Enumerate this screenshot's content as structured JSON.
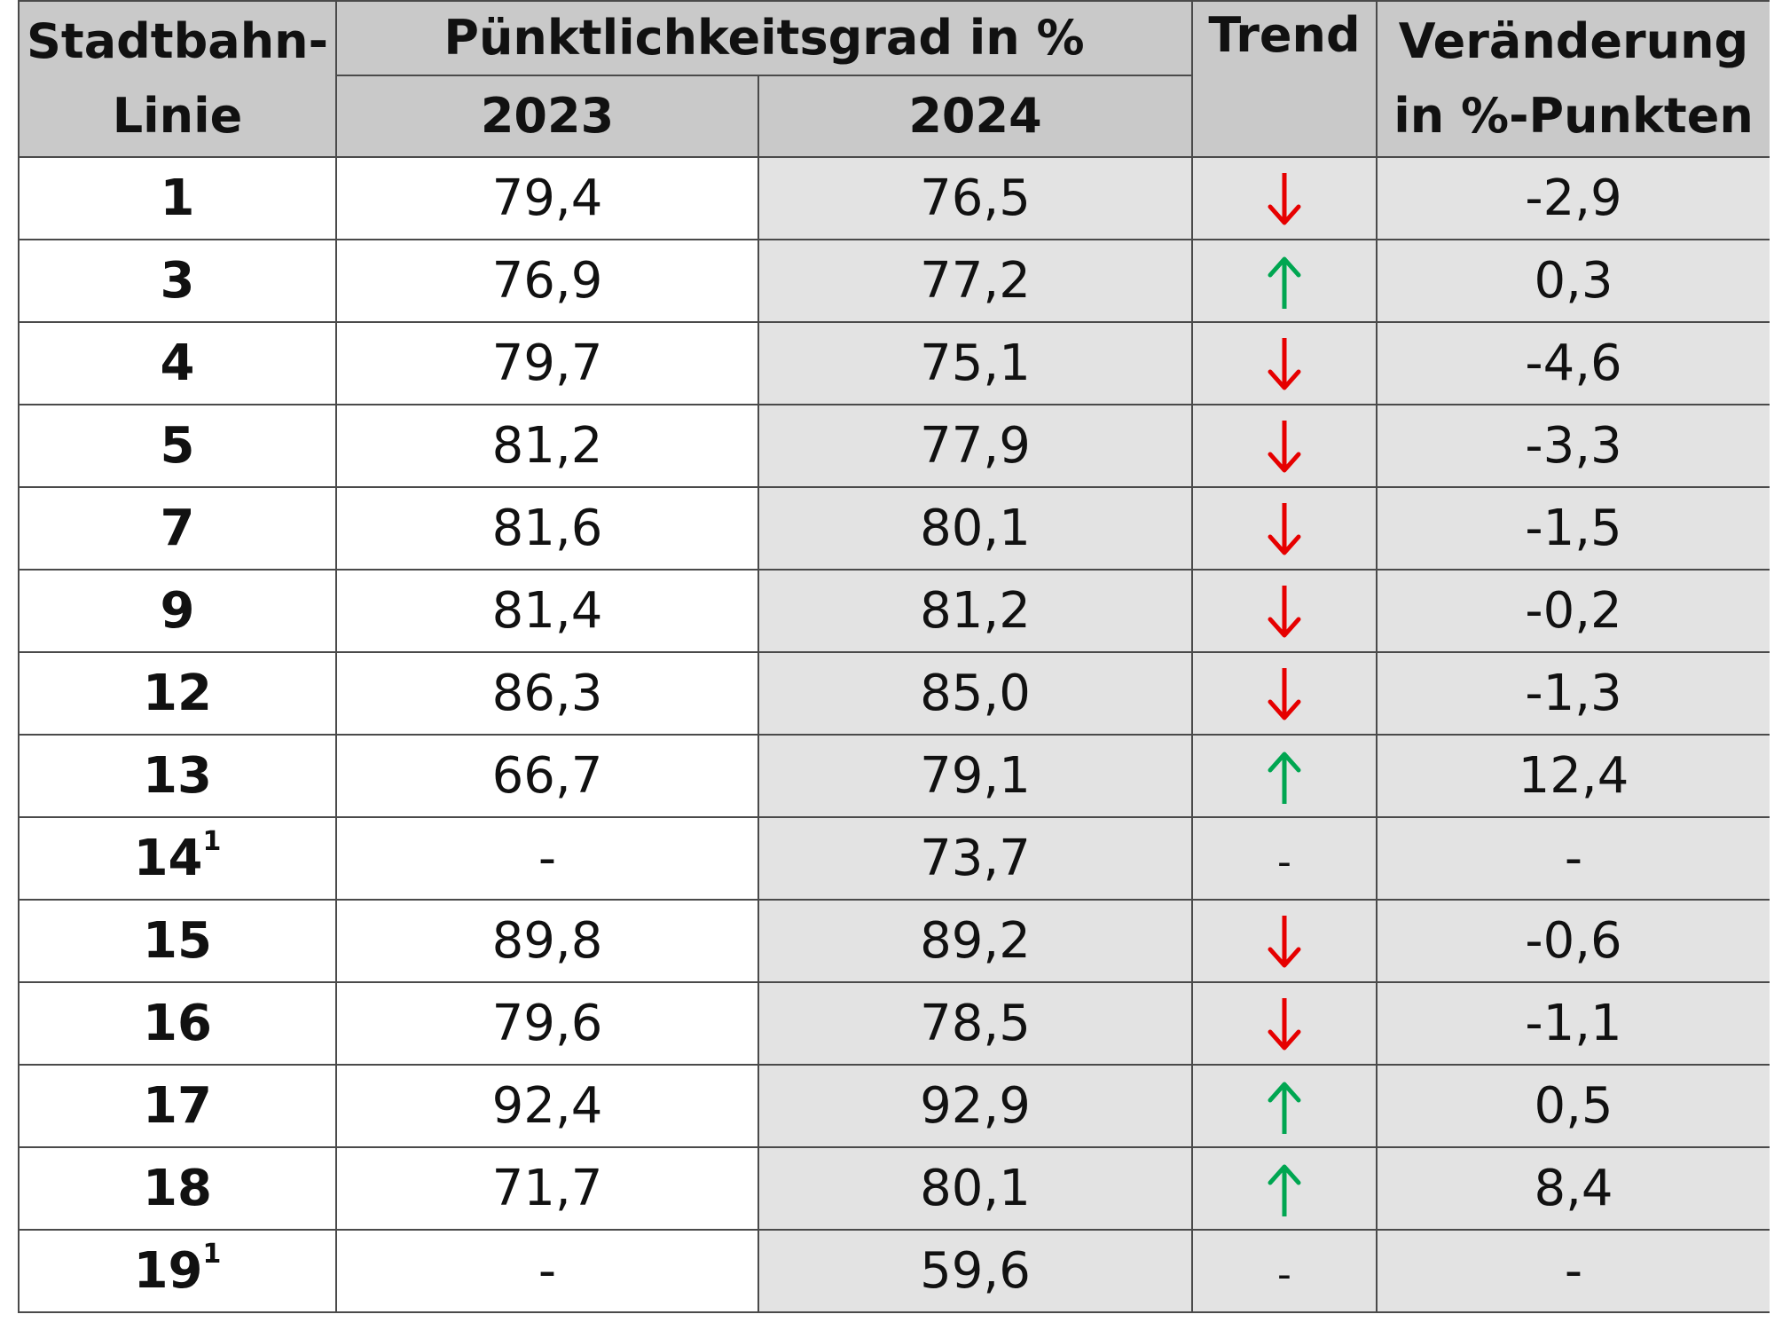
{
  "header": {
    "line_col": "Stadtbahn-\nLinie",
    "line_col_top": "Stadtbahn-",
    "line_col_bottom": "Linie",
    "punctuality": "Pünktlichkeitsgrad in %",
    "year_2023": "2023",
    "year_2024": "2024",
    "trend": "Trend",
    "change_top": "Veränderung",
    "change_bottom": "in %-Punkten"
  },
  "colors": {
    "down": "#e60000",
    "up": "#00a651",
    "header_bg": "#c9c9c9",
    "shade_bg": "#e3e3e3"
  },
  "rows": [
    {
      "line": "1",
      "sup": "",
      "y2023": "79,4",
      "y2024": "76,5",
      "trend": "down",
      "change": "-2,9"
    },
    {
      "line": "3",
      "sup": "",
      "y2023": "76,9",
      "y2024": "77,2",
      "trend": "up",
      "change": "0,3"
    },
    {
      "line": "4",
      "sup": "",
      "y2023": "79,7",
      "y2024": "75,1",
      "trend": "down",
      "change": "-4,6"
    },
    {
      "line": "5",
      "sup": "",
      "y2023": "81,2",
      "y2024": "77,9",
      "trend": "down",
      "change": "-3,3"
    },
    {
      "line": "7",
      "sup": "",
      "y2023": "81,6",
      "y2024": "80,1",
      "trend": "down",
      "change": "-1,5"
    },
    {
      "line": "9",
      "sup": "",
      "y2023": "81,4",
      "y2024": "81,2",
      "trend": "down",
      "change": "-0,2"
    },
    {
      "line": "12",
      "sup": "",
      "y2023": "86,3",
      "y2024": "85,0",
      "trend": "down",
      "change": "-1,3"
    },
    {
      "line": "13",
      "sup": "",
      "y2023": "66,7",
      "y2024": "79,1",
      "trend": "up",
      "change": "12,4"
    },
    {
      "line": "14",
      "sup": "1",
      "y2023": "-",
      "y2024": "73,7",
      "trend": "none",
      "change": "-"
    },
    {
      "line": "15",
      "sup": "",
      "y2023": "89,8",
      "y2024": "89,2",
      "trend": "down",
      "change": "-0,6"
    },
    {
      "line": "16",
      "sup": "",
      "y2023": "79,6",
      "y2024": "78,5",
      "trend": "down",
      "change": "-1,1"
    },
    {
      "line": "17",
      "sup": "",
      "y2023": "92,4",
      "y2024": "92,9",
      "trend": "up",
      "change": "0,5"
    },
    {
      "line": "18",
      "sup": "",
      "y2023": "71,7",
      "y2024": "80,1",
      "trend": "up",
      "change": "8,4"
    },
    {
      "line": "19",
      "sup": "1",
      "y2023": "-",
      "y2024": "59,6",
      "trend": "none",
      "change": "-"
    }
  ],
  "trend_none_symbol": "-"
}
